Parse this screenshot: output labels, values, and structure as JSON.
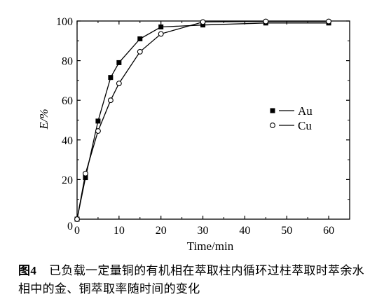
{
  "chart_data": {
    "type": "line",
    "xlabel": "Time/min",
    "ylabel": "E/%",
    "xlim": [
      0,
      65
    ],
    "ylim": [
      0,
      100
    ],
    "xticks": [
      0,
      10,
      20,
      30,
      40,
      50,
      60
    ],
    "yticks": [
      20,
      40,
      60,
      80,
      100
    ],
    "legend_position": "middle-right",
    "grid": false,
    "series": [
      {
        "name": "Au",
        "marker": "filled-square",
        "color": "#000000",
        "x": [
          0,
          2,
          5,
          8,
          10,
          15,
          20,
          30,
          45,
          60
        ],
        "y": [
          0,
          21,
          49.5,
          71.5,
          79,
          91,
          97,
          98,
          99,
          99
        ]
      },
      {
        "name": "Cu",
        "marker": "open-circle",
        "color": "#000000",
        "x": [
          0,
          2,
          5,
          8,
          10,
          15,
          20,
          30,
          45,
          60
        ],
        "y": [
          0,
          23,
          44.5,
          60,
          68.5,
          84.5,
          93.5,
          99.5,
          99.8,
          99.8
        ]
      }
    ]
  },
  "caption": {
    "label": "图",
    "number": "4",
    "text": "已负载一定量铜的有机相在萃取柱内循环过柱萃取时萃余水相中的金、铜萃取率随时间的变化"
  }
}
